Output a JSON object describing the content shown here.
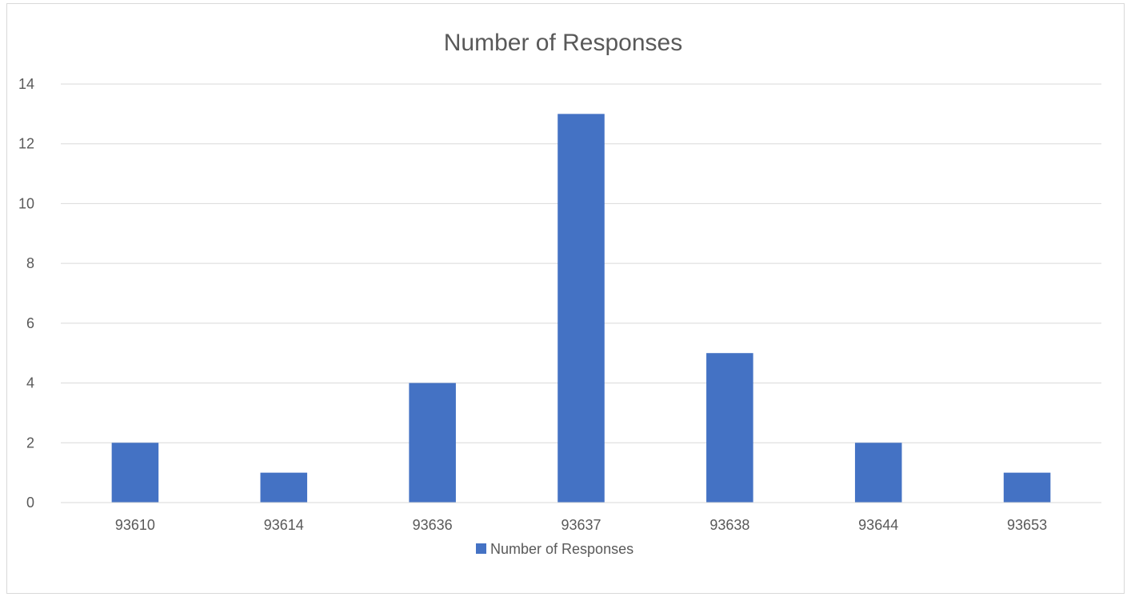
{
  "chart_data": {
    "type": "bar",
    "title": "Number of Responses",
    "xlabel": "",
    "ylabel": "",
    "categories": [
      "93610",
      "93614",
      "93636",
      "93637",
      "93638",
      "93644",
      "93653"
    ],
    "series": [
      {
        "name": "Number of Responses",
        "values": [
          2,
          1,
          4,
          13,
          5,
          2,
          1
        ],
        "color": "#4472c4"
      }
    ],
    "ylim": [
      0,
      14
    ],
    "yticks": [
      0,
      2,
      4,
      6,
      8,
      10,
      12,
      14
    ],
    "ytick_labels": [
      "0",
      "2",
      "4",
      "6",
      "8",
      "10",
      "12",
      "14"
    ],
    "grid": true,
    "legend_position": "bottom"
  }
}
